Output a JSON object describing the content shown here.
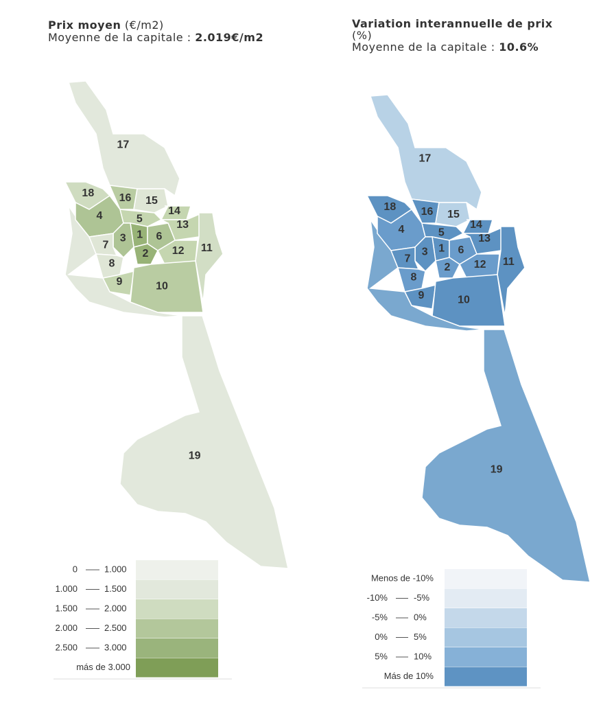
{
  "maps": [
    {
      "title_bold": "Prix moyen",
      "title_rest": "(€/m2)",
      "subtitle_prefix": "Moyenne de la capitale :",
      "subtitle_value": "2.019€/m2",
      "districts": [
        {
          "label": null,
          "color": "#e2e8dc"
        },
        {
          "label": "19",
          "color": "#e2e8dc"
        },
        {
          "label": "17",
          "color": "#e2e8dc"
        },
        {
          "label": "18",
          "color": "#cfdcc0"
        },
        {
          "label": "16",
          "color": "#b9cca2"
        },
        {
          "label": "15",
          "color": "#dfe6d6"
        },
        {
          "label": "4",
          "color": "#aec495"
        },
        {
          "label": "5",
          "color": "#c5d6b0"
        },
        {
          "label": "14",
          "color": "#c5d6b0"
        },
        {
          "label": "13",
          "color": "#c5d6b0"
        },
        {
          "label": "1",
          "color": "#98b377"
        },
        {
          "label": "3",
          "color": "#aec495"
        },
        {
          "label": "6",
          "color": "#aec495"
        },
        {
          "label": "7",
          "color": "#dfe6d6"
        },
        {
          "label": "2",
          "color": "#98b377"
        },
        {
          "label": "12",
          "color": "#c5d6b0"
        },
        {
          "label": "11",
          "color": "#d2dec5"
        },
        {
          "label": "8",
          "color": "#dfe6d6"
        },
        {
          "label": "9",
          "color": "#c5d6b0"
        },
        {
          "label": "10",
          "color": "#b9cca2"
        }
      ],
      "legend": [
        {
          "from": "0",
          "to": "1.000",
          "color": "#eef1eb"
        },
        {
          "from": "1.000",
          "to": "1.500",
          "color": "#e2e8dc"
        },
        {
          "from": "1.500",
          "to": "2.000",
          "color": "#cfdcc0"
        },
        {
          "from": "2.000",
          "to": "2.500",
          "color": "#b3c79b"
        },
        {
          "from": "2.500",
          "to": "3.000",
          "color": "#9ab47c"
        },
        {
          "label": "más de 3.000",
          "color": "#7f9e57"
        }
      ]
    },
    {
      "title_bold": "Variation interannuelle de prix",
      "title_rest": "(%)",
      "subtitle_prefix": "Moyenne de la capitale :",
      "subtitle_value": "10.6%",
      "districts": [
        {
          "label": null,
          "color": "#7aa8cf"
        },
        {
          "label": "19",
          "color": "#7aa8cf"
        },
        {
          "label": "17",
          "color": "#b8d2e6"
        },
        {
          "label": "18",
          "color": "#5d92c2"
        },
        {
          "label": "16",
          "color": "#5d92c2"
        },
        {
          "label": "15",
          "color": "#b8d2e6"
        },
        {
          "label": "4",
          "color": "#6a9ccb"
        },
        {
          "label": "5",
          "color": "#5d92c2"
        },
        {
          "label": "14",
          "color": "#5d92c2"
        },
        {
          "label": "13",
          "color": "#5d92c2"
        },
        {
          "label": "1",
          "color": "#5d92c2"
        },
        {
          "label": "3",
          "color": "#5d92c2"
        },
        {
          "label": "6",
          "color": "#6a9ccb"
        },
        {
          "label": "7",
          "color": "#5d92c2"
        },
        {
          "label": "2",
          "color": "#6a9ccb"
        },
        {
          "label": "12",
          "color": "#6a9ccb"
        },
        {
          "label": "11",
          "color": "#5d92c2"
        },
        {
          "label": "8",
          "color": "#6a9ccb"
        },
        {
          "label": "9",
          "color": "#5d92c2"
        },
        {
          "label": "10",
          "color": "#5d92c2"
        }
      ],
      "legend": [
        {
          "label": "Menos de -10%",
          "color": "#f1f4f8"
        },
        {
          "from": "-10%",
          "to": "-5%",
          "color": "#e3ebf3"
        },
        {
          "from": "-5%",
          "to": "0%",
          "color": "#c4d8ea"
        },
        {
          "from": "0%",
          "to": "5%",
          "color": "#a6c6e1"
        },
        {
          "from": "5%",
          "to": "10%",
          "color": "#86b1d7"
        },
        {
          "label": "Más de 10%",
          "color": "#5e93c3"
        }
      ]
    }
  ]
}
